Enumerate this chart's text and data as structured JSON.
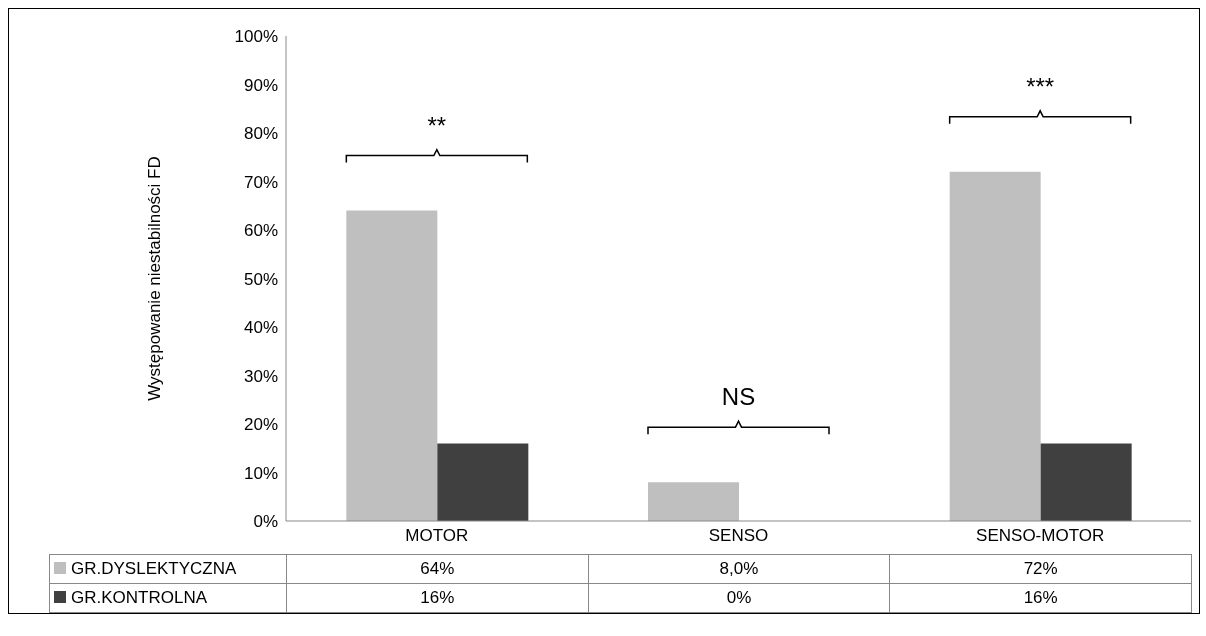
{
  "chart_data": {
    "type": "bar",
    "ylabel": "Występowanie niestabilności FD",
    "categories": [
      "MOTOR",
      "SENSO",
      "SENSO-MOTOR"
    ],
    "series": [
      {
        "name": "GR.DYSLEKTYCZNA",
        "color": "#bfbfbf",
        "values": [
          64,
          8,
          72
        ],
        "value_labels": [
          "64%",
          "8,0%",
          "72%"
        ]
      },
      {
        "name": "GR.KONTROLNA",
        "color": "#404040",
        "values": [
          16,
          0,
          16
        ],
        "value_labels": [
          "16%",
          "0%",
          "16%"
        ]
      }
    ],
    "ylim": [
      0,
      100
    ],
    "yticks": [
      {
        "value": 0,
        "label": "0%"
      },
      {
        "value": 10,
        "label": "10%"
      },
      {
        "value": 20,
        "label": "20%"
      },
      {
        "value": 30,
        "label": "30%"
      },
      {
        "value": 40,
        "label": "40%"
      },
      {
        "value": 50,
        "label": "50%"
      },
      {
        "value": 60,
        "label": "60%"
      },
      {
        "value": 70,
        "label": "70%"
      },
      {
        "value": 80,
        "label": "80%"
      },
      {
        "value": 90,
        "label": "90%"
      },
      {
        "value": 100,
        "label": "100%"
      }
    ],
    "annotations": [
      "**",
      "NS",
      "***"
    ],
    "legend": "bottom"
  }
}
